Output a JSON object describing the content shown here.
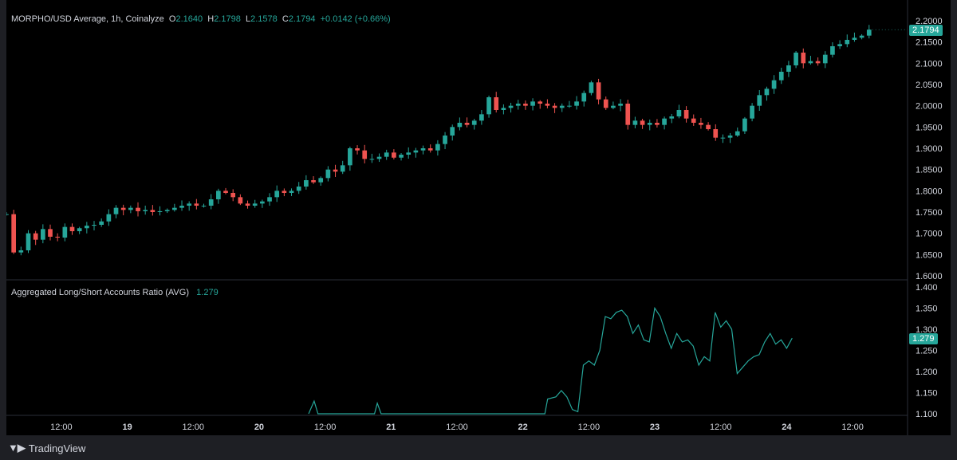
{
  "colors": {
    "up": "#26a69a",
    "down": "#ef5350",
    "line": "#26a69a",
    "axis_text": "#d1d4dc",
    "divider": "#2a2e39"
  },
  "header": {
    "symbol": "MORPHO/USD Average, 1h, Coinalyze",
    "o_label": "O",
    "o_value": "2.1640",
    "h_label": "H",
    "h_value": "2.1798",
    "l_label": "L",
    "l_value": "2.1578",
    "c_label": "C",
    "c_value": "2.1794",
    "change": "+0.0142 (+0.66%)"
  },
  "indicator": {
    "name": "Aggregated Long/Short Accounts Ratio (AVG)",
    "value": "1.279"
  },
  "footer": {
    "brand": "TradingView"
  },
  "chart_data": [
    {
      "type": "candlestick",
      "title": "MORPHO/USD Average, 1h, Coinalyze",
      "last_value": "2.1794",
      "ylim": [
        1.6,
        2.2
      ],
      "y_ticks": [
        "2.2000",
        "2.1500",
        "2.1000",
        "2.0500",
        "2.0000",
        "1.9500",
        "1.9000",
        "1.8500",
        "1.8000",
        "1.7500",
        "1.7000",
        "1.6500",
        "1.6000"
      ],
      "x_ticks": [
        "12:00",
        "19",
        "12:00",
        "20",
        "12:00",
        "21",
        "12:00",
        "22",
        "12:00",
        "23",
        "12:00",
        "24",
        "12:00"
      ],
      "x_tick_hours": [
        12,
        24,
        36,
        48,
        60,
        72,
        84,
        96,
        108,
        120,
        132,
        144,
        156
      ],
      "x_range_hours": [
        2,
        166
      ],
      "closes": [
        1.745,
        1.655,
        1.66,
        1.7,
        1.685,
        1.71,
        1.692,
        1.69,
        1.715,
        1.705,
        1.712,
        1.718,
        1.72,
        1.728,
        1.745,
        1.76,
        1.755,
        1.76,
        1.752,
        1.755,
        1.75,
        1.752,
        1.755,
        1.76,
        1.765,
        1.77,
        1.765,
        1.765,
        1.78,
        1.8,
        1.795,
        1.785,
        1.77,
        1.765,
        1.77,
        1.775,
        1.785,
        1.8,
        1.795,
        1.8,
        1.81,
        1.825,
        1.82,
        1.83,
        1.85,
        1.845,
        1.86,
        1.9,
        1.895,
        1.875,
        1.875,
        1.88,
        1.89,
        1.878,
        1.885,
        1.89,
        1.895,
        1.9,
        1.895,
        1.91,
        1.93,
        1.95,
        1.96,
        1.955,
        1.965,
        1.98,
        2.02,
        1.99,
        1.995,
        2.0,
        2.005,
        2.0,
        2.01,
        2.005,
        2.0,
        1.995,
        2.0,
        2.0,
        2.01,
        2.03,
        2.055,
        2.015,
        1.995,
        2.0,
        2.005,
        1.955,
        1.965,
        1.955,
        1.96,
        1.955,
        1.97,
        1.975,
        1.99,
        1.97,
        1.96,
        1.955,
        1.945,
        1.925,
        1.925,
        1.93,
        1.94,
        1.97,
        2.0,
        2.025,
        2.04,
        2.06,
        2.08,
        2.095,
        2.125,
        2.1,
        2.105,
        2.1,
        2.12,
        2.14,
        2.145,
        2.155,
        2.16,
        2.165,
        2.179
      ],
      "candle_x_start_hour": 2,
      "candle_x_end_hour": 159
    },
    {
      "type": "line",
      "title": "Aggregated Long/Short Accounts Ratio (AVG)",
      "last_value": "1.279",
      "ylim": [
        1.1,
        1.4
      ],
      "y_ticks": [
        "1.400",
        "1.350",
        "1.300",
        "1.250",
        "1.200",
        "1.150",
        "1.100"
      ],
      "points": [
        [
          57,
          1.1
        ],
        [
          58,
          1.13
        ],
        [
          58.7,
          1.1
        ],
        [
          69,
          1.1
        ],
        [
          69.5,
          1.125
        ],
        [
          70.2,
          1.1
        ],
        [
          100,
          1.1
        ],
        [
          100.5,
          1.135
        ],
        [
          102,
          1.14
        ],
        [
          103,
          1.155
        ],
        [
          104,
          1.14
        ],
        [
          105,
          1.11
        ],
        [
          106,
          1.105
        ],
        [
          107,
          1.215
        ],
        [
          108,
          1.225
        ],
        [
          109,
          1.215
        ],
        [
          110,
          1.25
        ],
        [
          111,
          1.33
        ],
        [
          112,
          1.325
        ],
        [
          113,
          1.34
        ],
        [
          114,
          1.345
        ],
        [
          115,
          1.33
        ],
        [
          116,
          1.29
        ],
        [
          117,
          1.31
        ],
        [
          118,
          1.275
        ],
        [
          119,
          1.27
        ],
        [
          120,
          1.35
        ],
        [
          121,
          1.33
        ],
        [
          122,
          1.29
        ],
        [
          123,
          1.255
        ],
        [
          124,
          1.29
        ],
        [
          125,
          1.27
        ],
        [
          126,
          1.275
        ],
        [
          127,
          1.26
        ],
        [
          128,
          1.215
        ],
        [
          129,
          1.235
        ],
        [
          130,
          1.225
        ],
        [
          131,
          1.34
        ],
        [
          132,
          1.305
        ],
        [
          133,
          1.32
        ],
        [
          134,
          1.3
        ],
        [
          135,
          1.195
        ],
        [
          136,
          1.21
        ],
        [
          137,
          1.225
        ],
        [
          138,
          1.235
        ],
        [
          139,
          1.24
        ],
        [
          140,
          1.27
        ],
        [
          141,
          1.29
        ],
        [
          142,
          1.265
        ],
        [
          143,
          1.275
        ],
        [
          144,
          1.255
        ],
        [
          145,
          1.279
        ]
      ],
      "x_range_hours": [
        2,
        166
      ]
    }
  ]
}
